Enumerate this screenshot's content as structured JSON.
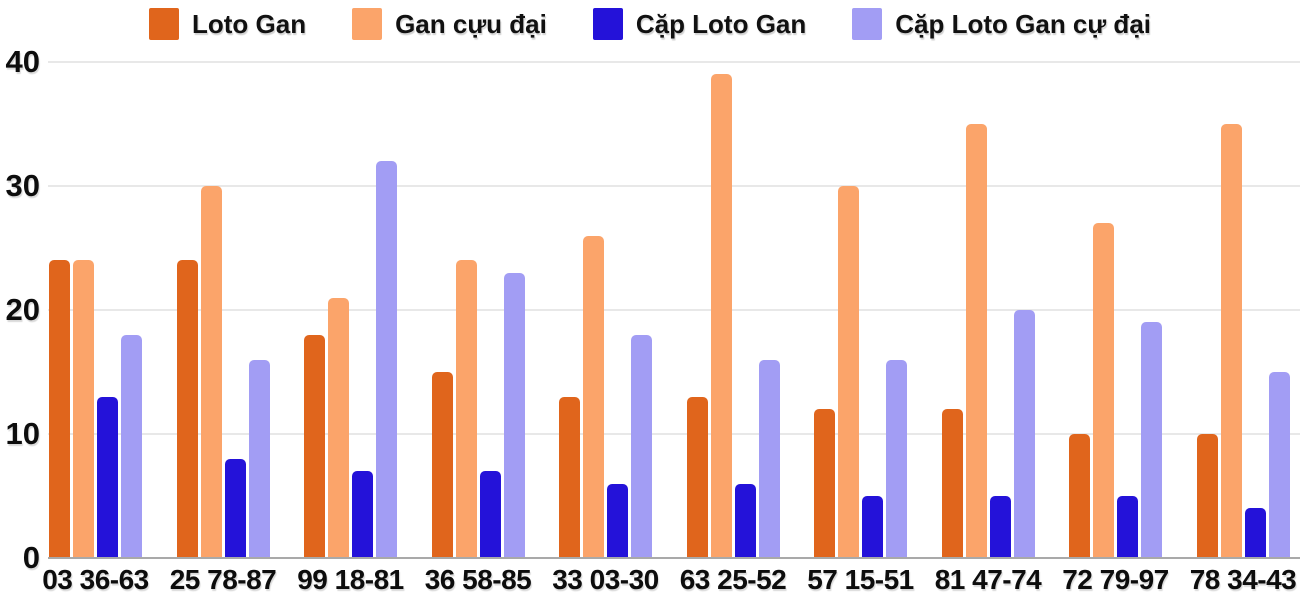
{
  "chart_data": {
    "type": "bar",
    "title": "",
    "xlabel": "",
    "ylabel": "",
    "categories": [
      "03 36-63",
      "25 78-87",
      "99 18-81",
      "36 58-85",
      "33 03-30",
      "63 25-52",
      "57 15-51",
      "81 47-74",
      "72 79-97",
      "78 34-43"
    ],
    "series": [
      {
        "name": "Loto Gan",
        "color": "#e0651c",
        "values": [
          24,
          24,
          18,
          15,
          13,
          13,
          12,
          12,
          10,
          10
        ]
      },
      {
        "name": "Gan cựu đại",
        "color": "#fba46a",
        "values": [
          24,
          30,
          21,
          24,
          26,
          39,
          30,
          35,
          27,
          35
        ]
      },
      {
        "name": "Cặp Loto Gan",
        "color": "#2412d9",
        "values": [
          13,
          8,
          7,
          7,
          6,
          6,
          5,
          5,
          5,
          4
        ]
      },
      {
        "name": "Cặp Loto Gan cự đại",
        "color": "#a29df4",
        "values": [
          18,
          16,
          32,
          23,
          18,
          16,
          16,
          20,
          19,
          15
        ]
      }
    ],
    "yticks": [
      0,
      10,
      20,
      30,
      40
    ],
    "ylim": [
      0,
      40
    ],
    "grid": true,
    "legend_position": "top",
    "colors": {
      "background": "#ffffff",
      "gridline": "#e8e8e8",
      "axis_line": "#a9a9a9",
      "text": "#0d0d0d"
    }
  }
}
